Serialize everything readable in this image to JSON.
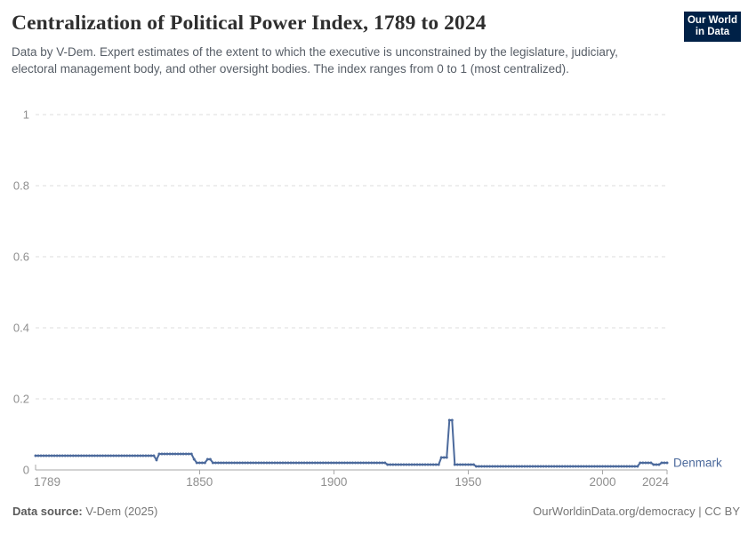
{
  "header": {
    "title": "Centralization of Political Power Index, 1789 to 2024",
    "subtitle": "Data by V-Dem. Expert estimates of the extent to which the executive is unconstrained by the legislature, judiciary, electoral management body, and other oversight bodies. The index ranges from 0 to 1 (most centralized).",
    "logo": {
      "line1": "Our World",
      "line2": "in Data",
      "bg_color": "#002147",
      "accent_color": "#D42B21"
    }
  },
  "footer": {
    "source_label": "Data source:",
    "source_value": "V-Dem (2025)",
    "credit": "OurWorldinData.org/democracy | CC BY"
  },
  "chart_data": {
    "type": "line",
    "title": "Centralization of Political Power Index, 1789 to 2024",
    "entity_label": "Denmark",
    "xlabel": "",
    "ylabel": "",
    "x_range": [
      1789,
      2024
    ],
    "ylim": [
      0,
      1
    ],
    "x_ticks": [
      1789,
      1850,
      1900,
      1950,
      2000,
      2024
    ],
    "y_ticks": [
      0,
      0.2,
      0.4,
      0.6,
      0.8,
      1
    ],
    "grid": "horizontal dashed gridlines",
    "legend_position": "line-end label",
    "colors": {
      "line": "#4C6A9C",
      "entity_label": "#4C6A9C",
      "gridline": "#dedede",
      "axis": "#a7a7a7",
      "tick_label": "#8f8f8f"
    },
    "series": [
      {
        "name": "Denmark",
        "segments": [
          {
            "from": 1789,
            "to": 1833,
            "value": 0.04
          },
          {
            "from": 1834,
            "to": 1834,
            "value": 0.028
          },
          {
            "from": 1835,
            "to": 1847,
            "value": 0.045
          },
          {
            "from": 1848,
            "to": 1848,
            "value": 0.03
          },
          {
            "from": 1849,
            "to": 1852,
            "value": 0.02
          },
          {
            "from": 1853,
            "to": 1854,
            "value": 0.03
          },
          {
            "from": 1855,
            "to": 1919,
            "value": 0.02
          },
          {
            "from": 1920,
            "to": 1939,
            "value": 0.015
          },
          {
            "from": 1940,
            "to": 1942,
            "value": 0.035
          },
          {
            "from": 1943,
            "to": 1944,
            "value": 0.14
          },
          {
            "from": 1945,
            "to": 1952,
            "value": 0.015
          },
          {
            "from": 1953,
            "to": 2013,
            "value": 0.01
          },
          {
            "from": 2014,
            "to": 2018,
            "value": 0.02
          },
          {
            "from": 2019,
            "to": 2021,
            "value": 0.015
          },
          {
            "from": 2022,
            "to": 2024,
            "value": 0.02
          }
        ]
      }
    ]
  }
}
